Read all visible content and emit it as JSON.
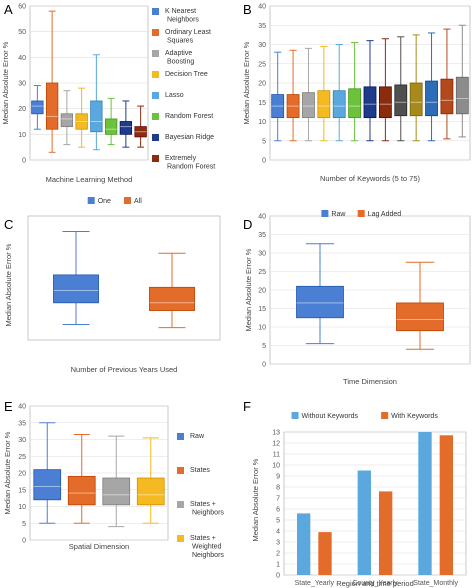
{
  "chart_data": [
    {
      "panel": "A",
      "type": "box",
      "xlabel": "Machine Learning Method",
      "ylabel": "Median Absolute Error %",
      "ylim": [
        0,
        60
      ],
      "yticks": [
        0,
        10,
        20,
        30,
        40,
        50,
        60
      ],
      "legend_position": "right",
      "series": [
        {
          "name": "K Nearest Neighbors",
          "color": "#4a7fd4",
          "min": 12,
          "q1": 18,
          "median": 21,
          "q3": 23,
          "max": 29
        },
        {
          "name": "Ordinary Least Squares",
          "color": "#e46c2a",
          "min": 3,
          "q1": 12,
          "median": 17,
          "q3": 30,
          "max": 58
        },
        {
          "name": "Adaptive Boosting",
          "color": "#a6a6a6",
          "min": 6,
          "q1": 13,
          "median": 16,
          "q3": 18,
          "max": 27
        },
        {
          "name": "Decision Tree",
          "color": "#f5b921",
          "min": 5,
          "q1": 12,
          "median": 15,
          "q3": 18,
          "max": 28
        },
        {
          "name": "Lasso",
          "color": "#5aa8de",
          "min": 4,
          "q1": 11,
          "median": 15,
          "q3": 23,
          "max": 41
        },
        {
          "name": "Random Forest",
          "color": "#6cc23c",
          "min": 6,
          "q1": 10,
          "median": 12,
          "q3": 16,
          "max": 24
        },
        {
          "name": "Bayesian Ridge",
          "color": "#1f3b8c",
          "min": 5,
          "q1": 10,
          "median": 13,
          "q3": 15,
          "max": 23
        },
        {
          "name": "Extremely Random Forest",
          "color": "#8b2c0f",
          "min": 5,
          "q1": 9,
          "median": 11,
          "q3": 13,
          "max": 21
        }
      ]
    },
    {
      "panel": "B",
      "type": "box",
      "xlabel": "Number of Keywords (5 to 75)",
      "ylabel": "Median Absolute Error %",
      "ylim": [
        0,
        40
      ],
      "yticks": [
        0,
        5,
        10,
        15,
        20,
        25,
        30,
        35,
        40
      ],
      "colors": [
        "#4a7fd4",
        "#e46c2a",
        "#a6a6a6",
        "#f5b921",
        "#5aa8de",
        "#6cc23c",
        "#1f3b8c",
        "#8b2c0f",
        "#4f4f4f",
        "#a88a1c",
        "#2d6db8",
        "#b24a1e",
        "#8c8c8c"
      ],
      "boxes": [
        {
          "min": 5,
          "q1": 11,
          "median": 14,
          "q3": 17,
          "max": 28
        },
        {
          "min": 5,
          "q1": 11,
          "median": 14,
          "q3": 17,
          "max": 28.5
        },
        {
          "min": 5,
          "q1": 11,
          "median": 14,
          "q3": 17.5,
          "max": 29
        },
        {
          "min": 5,
          "q1": 11,
          "median": 14,
          "q3": 18,
          "max": 29.5
        },
        {
          "min": 5,
          "q1": 11,
          "median": 14,
          "q3": 18,
          "max": 30
        },
        {
          "min": 5,
          "q1": 11,
          "median": 14,
          "q3": 18.5,
          "max": 30.5
        },
        {
          "min": 5,
          "q1": 11,
          "median": 14.5,
          "q3": 19,
          "max": 31
        },
        {
          "min": 5,
          "q1": 11,
          "median": 14.5,
          "q3": 19,
          "max": 31.5
        },
        {
          "min": 5,
          "q1": 11.5,
          "median": 15,
          "q3": 19.5,
          "max": 32
        },
        {
          "min": 5,
          "q1": 11.5,
          "median": 15,
          "q3": 20,
          "max": 32.5
        },
        {
          "min": 5,
          "q1": 11.5,
          "median": 15,
          "q3": 20.5,
          "max": 33
        },
        {
          "min": 5.5,
          "q1": 12,
          "median": 15.5,
          "q3": 21,
          "max": 34
        },
        {
          "min": 6,
          "q1": 12,
          "median": 16,
          "q3": 21.5,
          "max": 35
        }
      ]
    },
    {
      "panel": "C",
      "type": "box",
      "xlabel": "Number of Previous Years Used",
      "ylabel": "Median Absolute Error %",
      "ylim": [
        0,
        40
      ],
      "yticks": [],
      "legend_position": "top",
      "series": [
        {
          "name": "One",
          "color": "#4a7fd4",
          "min": 5,
          "q1": 12,
          "median": 16,
          "q3": 21,
          "max": 35
        },
        {
          "name": "All",
          "color": "#e46c2a",
          "min": 4,
          "q1": 9.5,
          "median": 12,
          "q3": 17,
          "max": 28
        }
      ]
    },
    {
      "panel": "D",
      "type": "box",
      "xlabel": "Time Dimension",
      "ylabel": "Median Absolute Error %",
      "ylim": [
        0,
        40
      ],
      "yticks": [
        0,
        5,
        10,
        15,
        20,
        25,
        30,
        35,
        40
      ],
      "legend_position": "top",
      "series": [
        {
          "name": "Raw",
          "color": "#4a7fd4",
          "min": 5.5,
          "q1": 12.5,
          "median": 16.5,
          "q3": 21,
          "max": 32.5
        },
        {
          "name": "Lag Added",
          "color": "#e46c2a",
          "min": 4,
          "q1": 9,
          "median": 12,
          "q3": 16.5,
          "max": 27.5
        }
      ]
    },
    {
      "panel": "E",
      "type": "box",
      "xlabel": "Spatial Dimension",
      "ylabel": "Median Absolute Error %",
      "ylim": [
        0,
        40
      ],
      "yticks": [
        0,
        5,
        10,
        15,
        20,
        25,
        30,
        35,
        40
      ],
      "legend_position": "right",
      "series": [
        {
          "name": "Raw",
          "color": "#4a7fd4",
          "min": 5,
          "q1": 12,
          "median": 16,
          "q3": 21,
          "max": 35
        },
        {
          "name": "States",
          "color": "#e46c2a",
          "min": 5,
          "q1": 10.5,
          "median": 14,
          "q3": 19,
          "max": 31.5
        },
        {
          "name": "States + Neighbors",
          "color": "#a6a6a6",
          "min": 4,
          "q1": 10.5,
          "median": 13.5,
          "q3": 18.5,
          "max": 31
        },
        {
          "name": "States + Weighted Neighbors",
          "color": "#f5b921",
          "min": 5,
          "q1": 10.5,
          "median": 13.5,
          "q3": 18.5,
          "max": 30.5
        }
      ]
    },
    {
      "panel": "F",
      "type": "bar",
      "xlabel": "Region and time period",
      "ylabel": "Median Absolute Error %",
      "ylim": [
        0,
        13
      ],
      "yticks": [
        0,
        1,
        2,
        3,
        4,
        5,
        6,
        7,
        8,
        9,
        10,
        11,
        12,
        13
      ],
      "legend_position": "top",
      "categories": [
        "State_Yearly",
        "County_Yearly",
        "State_Monthly"
      ],
      "series": [
        {
          "name": "Without Keywords",
          "color": "#5aa8de",
          "values": [
            5.6,
            9.5,
            13
          ]
        },
        {
          "name": "With Keywords",
          "color": "#e46c2a",
          "values": [
            3.9,
            7.6,
            12.7
          ]
        }
      ]
    }
  ]
}
